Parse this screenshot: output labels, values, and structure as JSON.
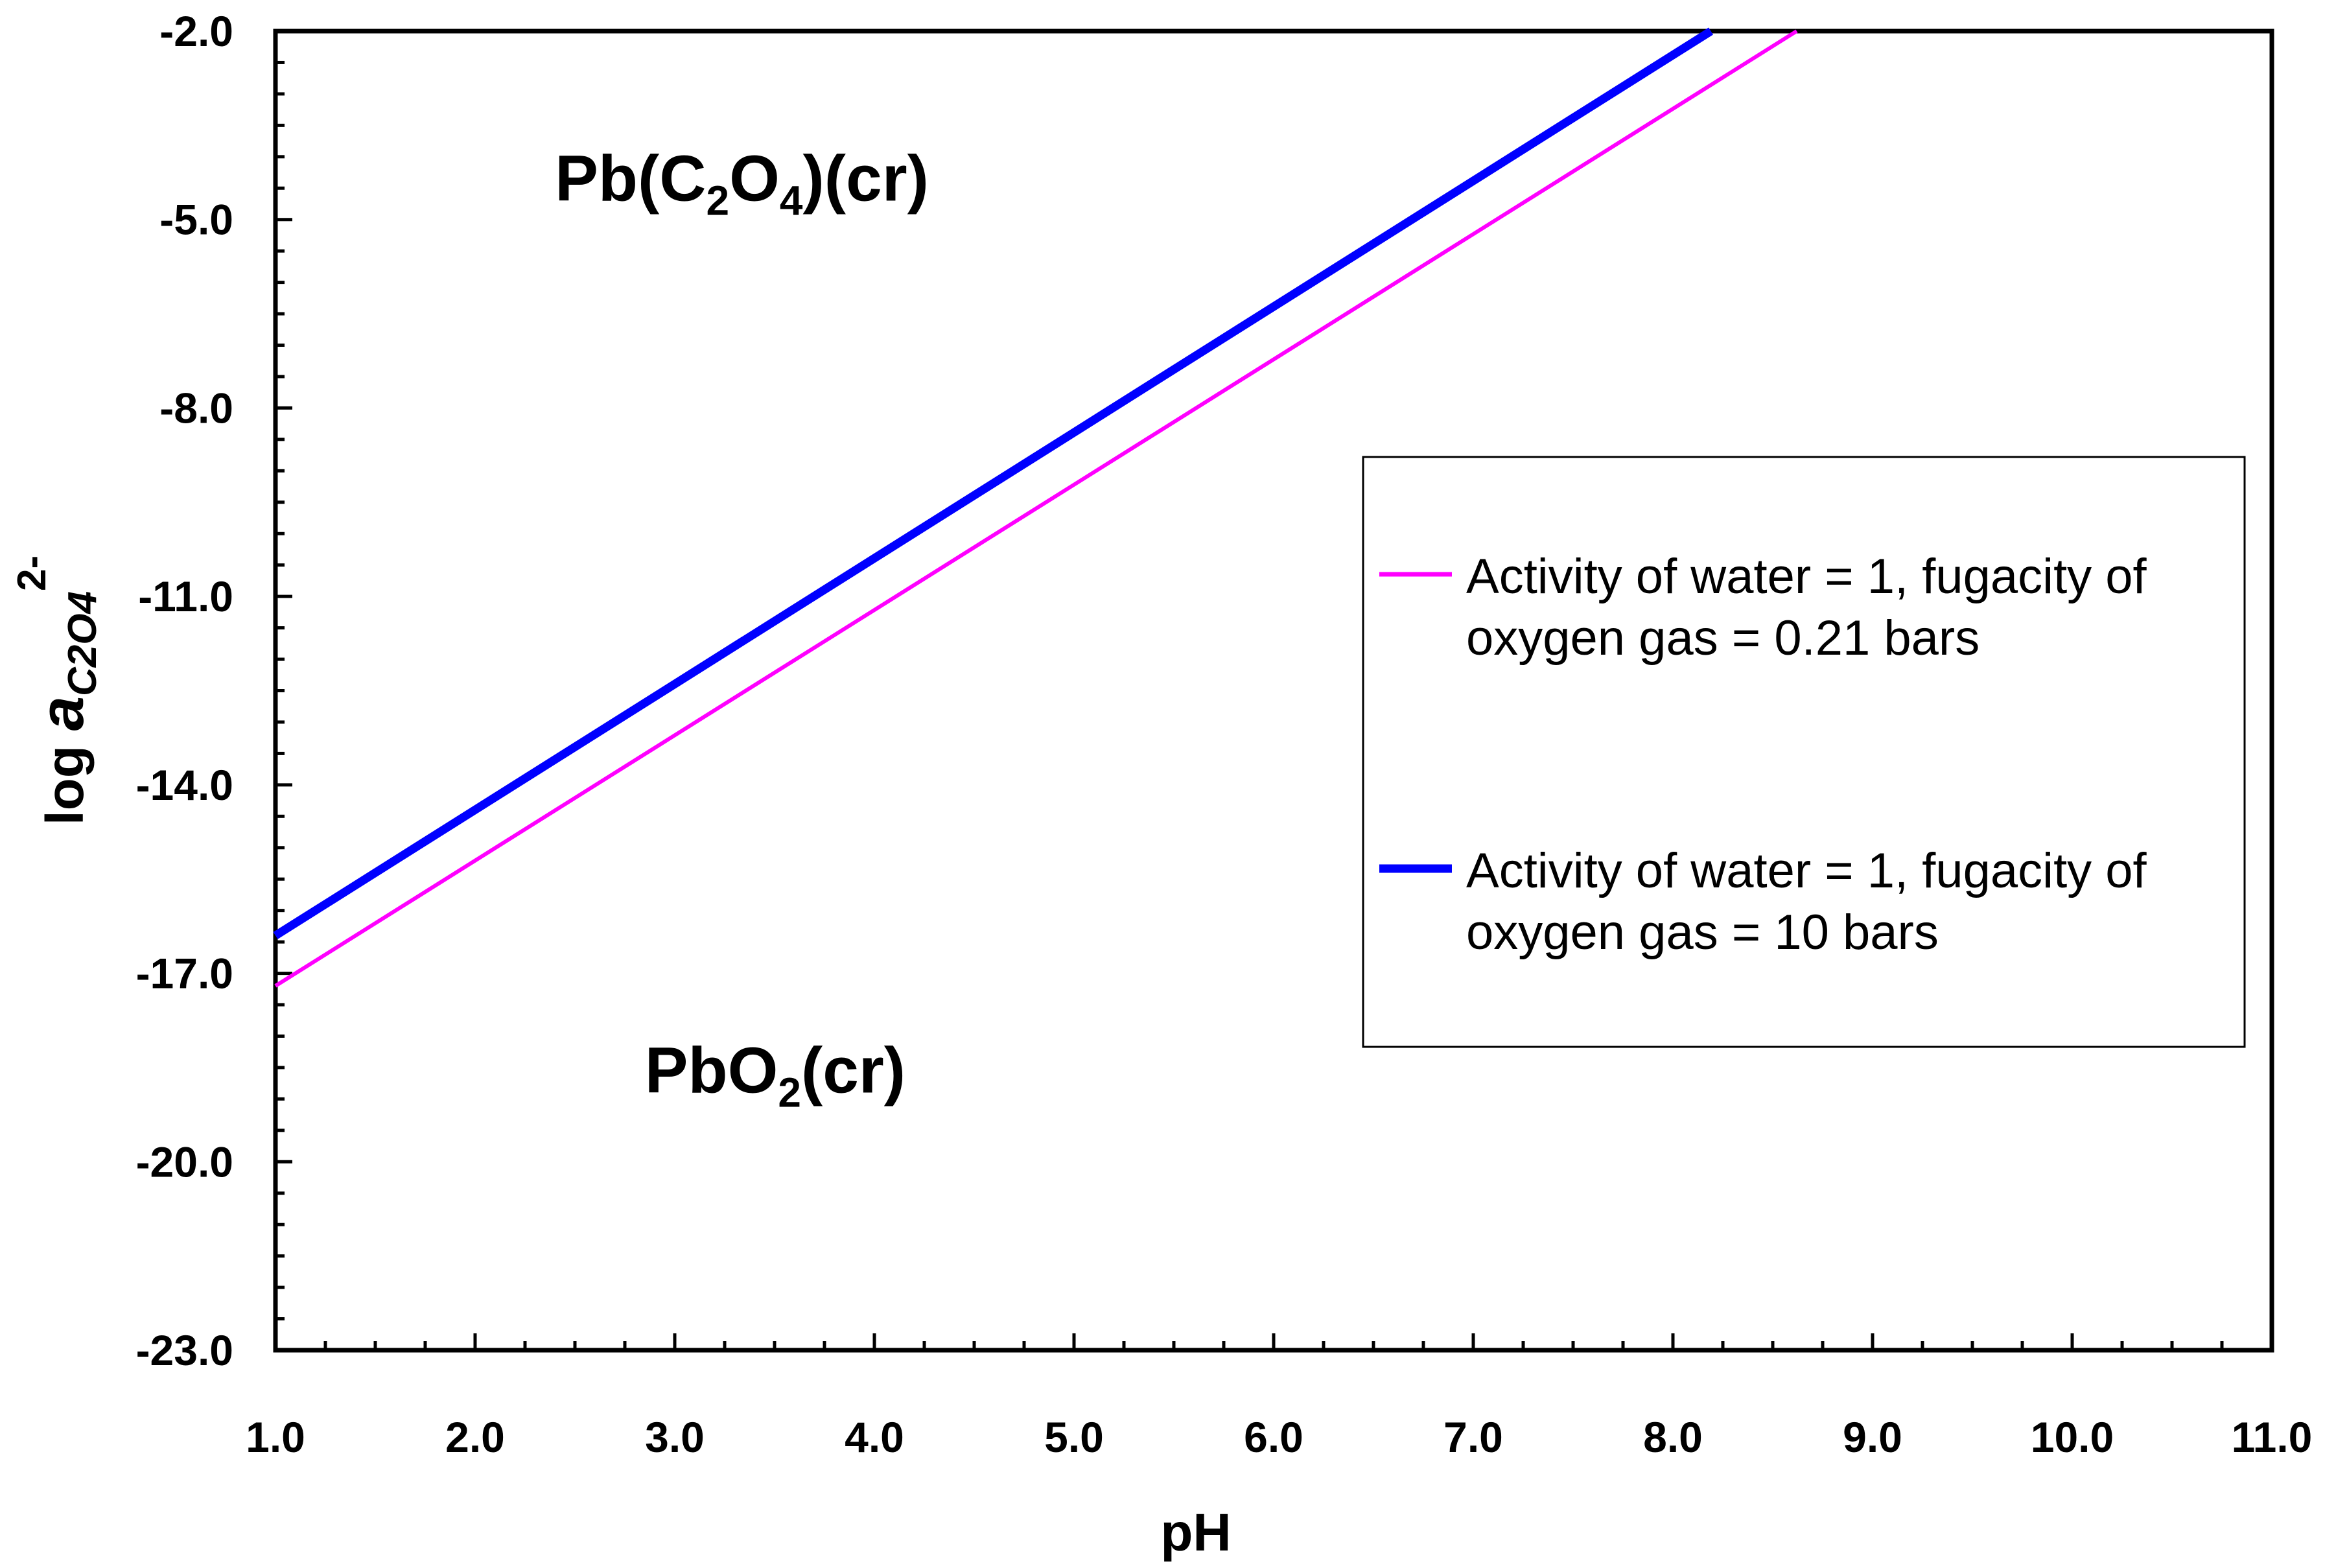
{
  "chart_data": {
    "type": "line",
    "xlabel": "pH",
    "ylabel": {
      "prefix": "log ",
      "symbol": "a",
      "subscript": "C2O4",
      "superscript": "2-"
    },
    "xlim": [
      1.0,
      11.0
    ],
    "ylim": [
      -23.0,
      -2.0
    ],
    "x_ticks": [
      "1.0",
      "2.0",
      "3.0",
      "4.0",
      "5.0",
      "6.0",
      "7.0",
      "8.0",
      "9.0",
      "10.0",
      "11.0"
    ],
    "y_ticks": [
      "-2.0",
      "-5.0",
      "-8.0",
      "-11.0",
      "-14.0",
      "-17.0",
      "-20.0",
      "-23.0"
    ],
    "regions": [
      {
        "name": "pb-oxalate",
        "parts": [
          "Pb(C",
          "2",
          "O",
          "4",
          ")(cr)"
        ],
        "at": {
          "x": 2.4,
          "y": -4.7
        }
      },
      {
        "name": "pb-dioxide",
        "parts": [
          "PbO",
          "2",
          "(cr)"
        ],
        "at": {
          "x": 2.85,
          "y": -18.9
        }
      }
    ],
    "series": [
      {
        "name": "o2-021",
        "label_lines": [
          "Activity of water = 1, fugacity of",
          "oxygen gas = 0.21 bars"
        ],
        "color": "#ff00ff",
        "x": [
          1.0,
          8.62
        ],
        "y": [
          -17.2,
          -2.0
        ]
      },
      {
        "name": "o2-10",
        "label_lines": [
          "Activity of water = 1, fugacity of",
          "oxygen gas = 10 bars"
        ],
        "color": "#0000ff",
        "x": [
          1.0,
          8.19
        ],
        "y": [
          -16.4,
          -2.0
        ]
      }
    ],
    "legend_position": "right",
    "grid": false
  }
}
